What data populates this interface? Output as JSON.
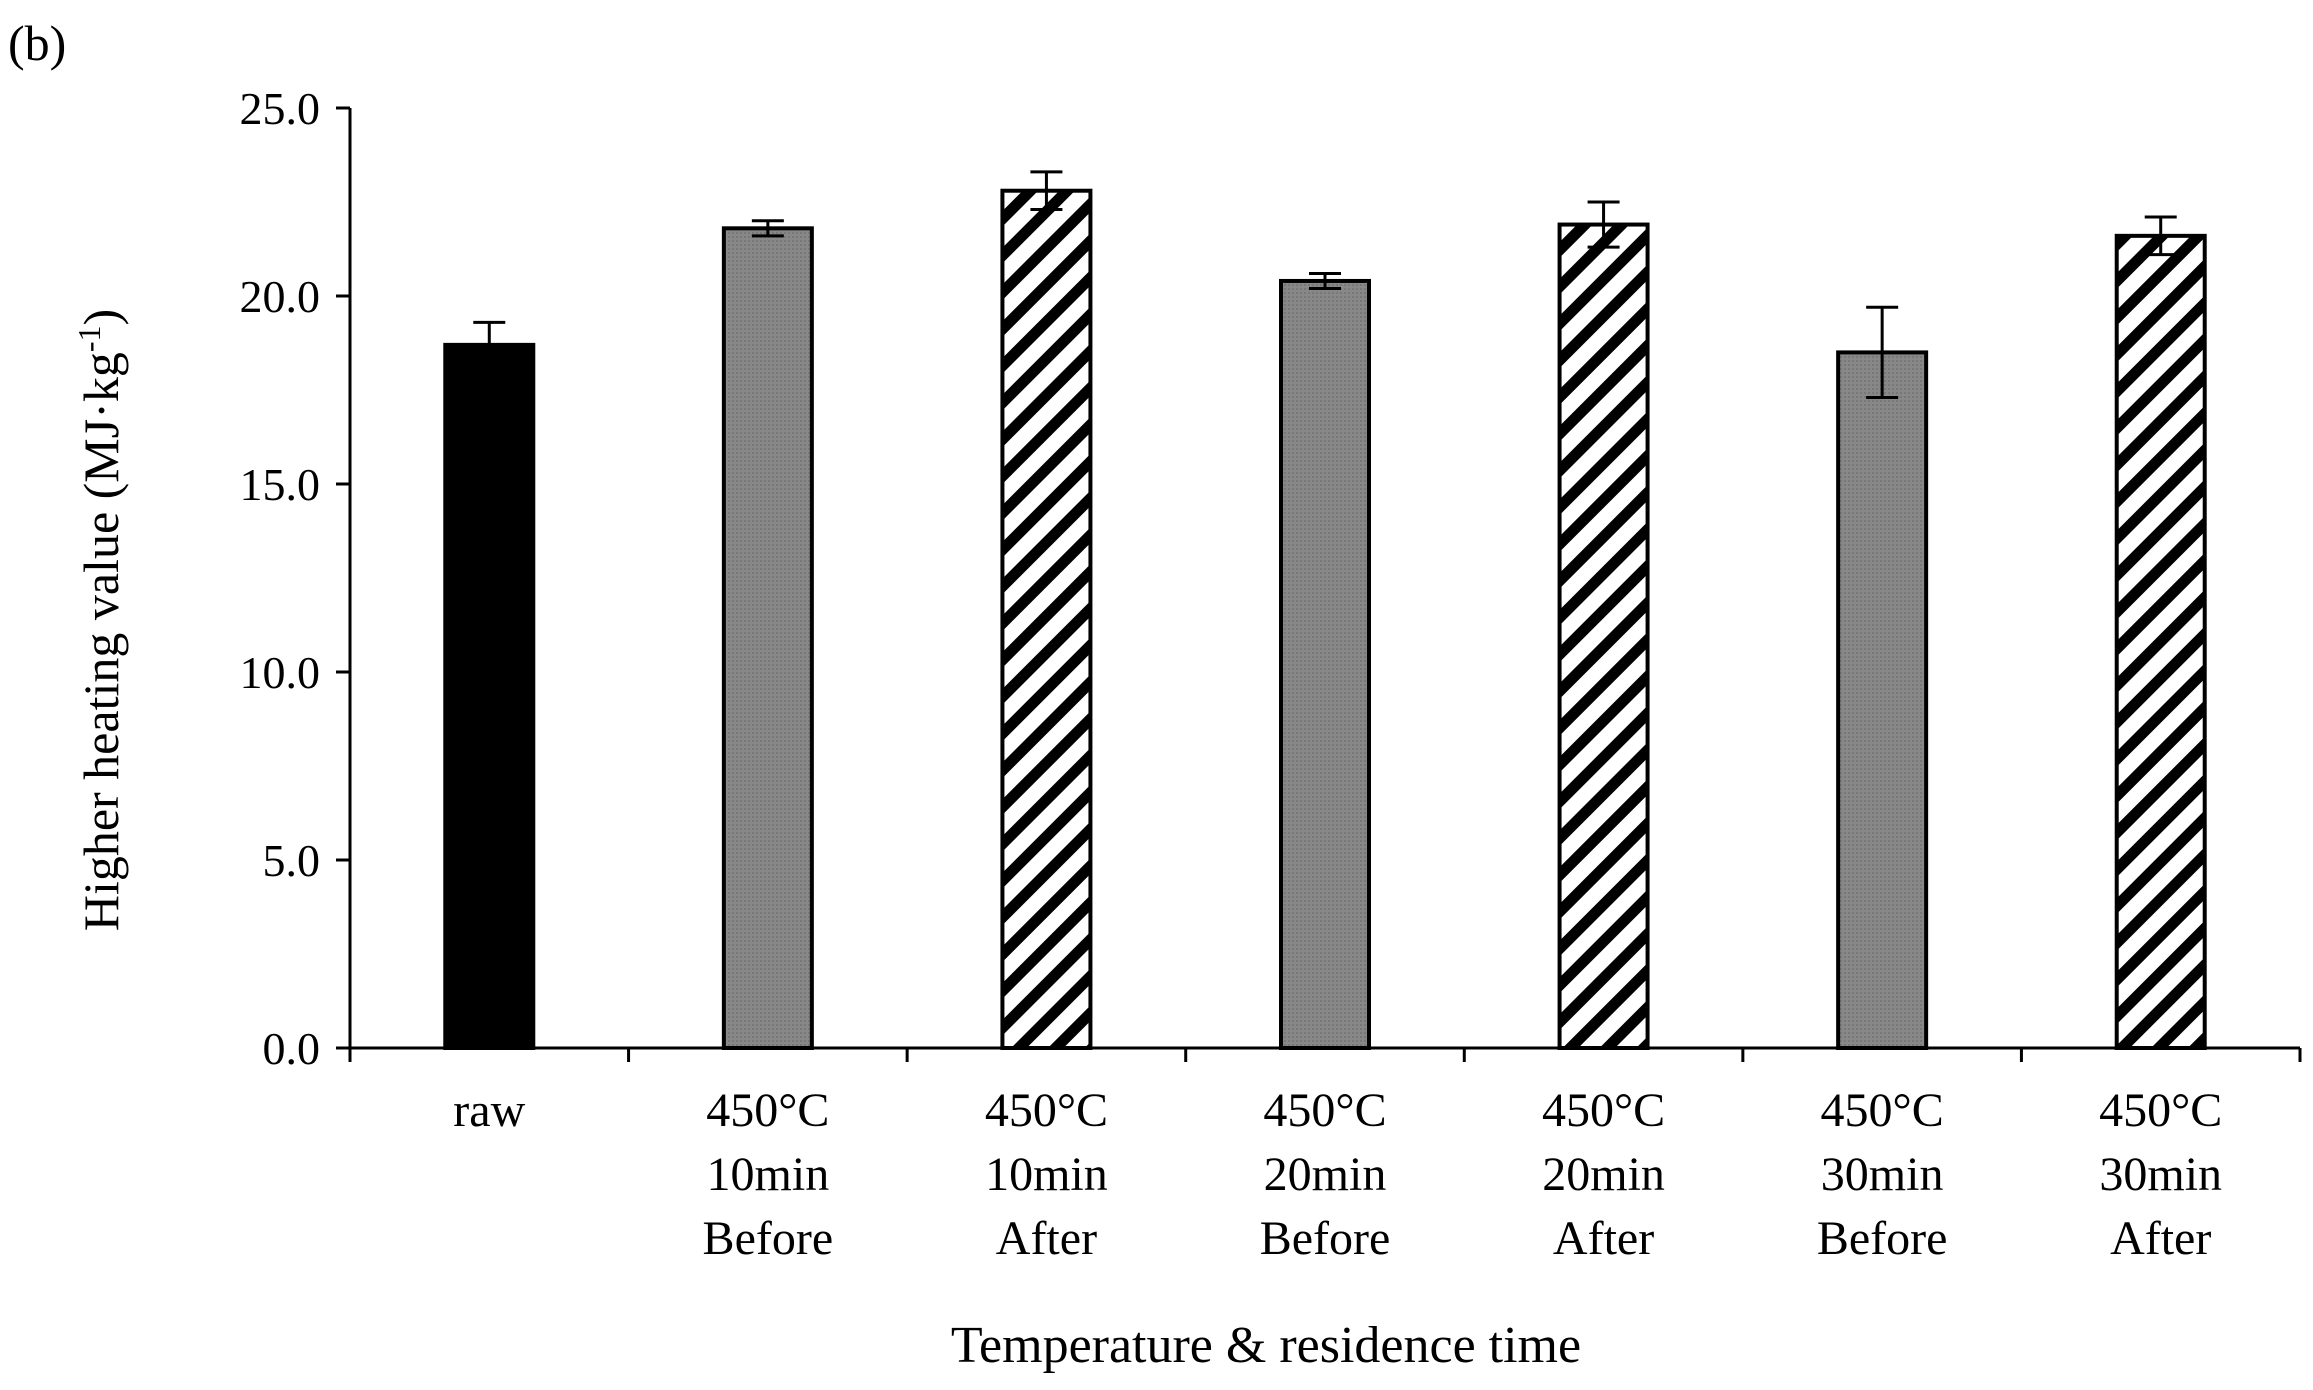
{
  "chart_data": {
    "type": "bar",
    "panel_label": "(b)",
    "title": "",
    "ylabel_main": "Higher heating value (MJ·kg",
    "ylabel_sup": "-1",
    "ylabel_close": ")",
    "xlabel": "Temperature & residence time",
    "ylim": [
      0,
      25
    ],
    "yticks": [
      0,
      5,
      10,
      15,
      20,
      25
    ],
    "ytick_labels": [
      "0.0",
      "5.0",
      "10.0",
      "15.0",
      "20.0",
      "25.0"
    ],
    "grid": false,
    "categories": [
      [
        "raw"
      ],
      [
        "450°C",
        "10min",
        "Before"
      ],
      [
        "450°C",
        "10min",
        "After"
      ],
      [
        "450°C",
        "20min",
        "Before"
      ],
      [
        "450°C",
        "20min",
        "After"
      ],
      [
        "450°C",
        "30min",
        "Before"
      ],
      [
        "450°C",
        "30min",
        "After"
      ]
    ],
    "values": [
      18.7,
      21.8,
      22.8,
      20.4,
      21.9,
      18.5,
      21.6
    ],
    "errors": [
      0.6,
      0.2,
      0.5,
      0.2,
      0.6,
      1.2,
      0.5
    ],
    "styles": [
      "solid-black",
      "gray",
      "hatched",
      "gray",
      "hatched",
      "gray",
      "hatched"
    ],
    "colors": {
      "solid-black": "#000000",
      "gray": "#808080",
      "hatched": "#ffffff",
      "axis": "#000000"
    }
  }
}
